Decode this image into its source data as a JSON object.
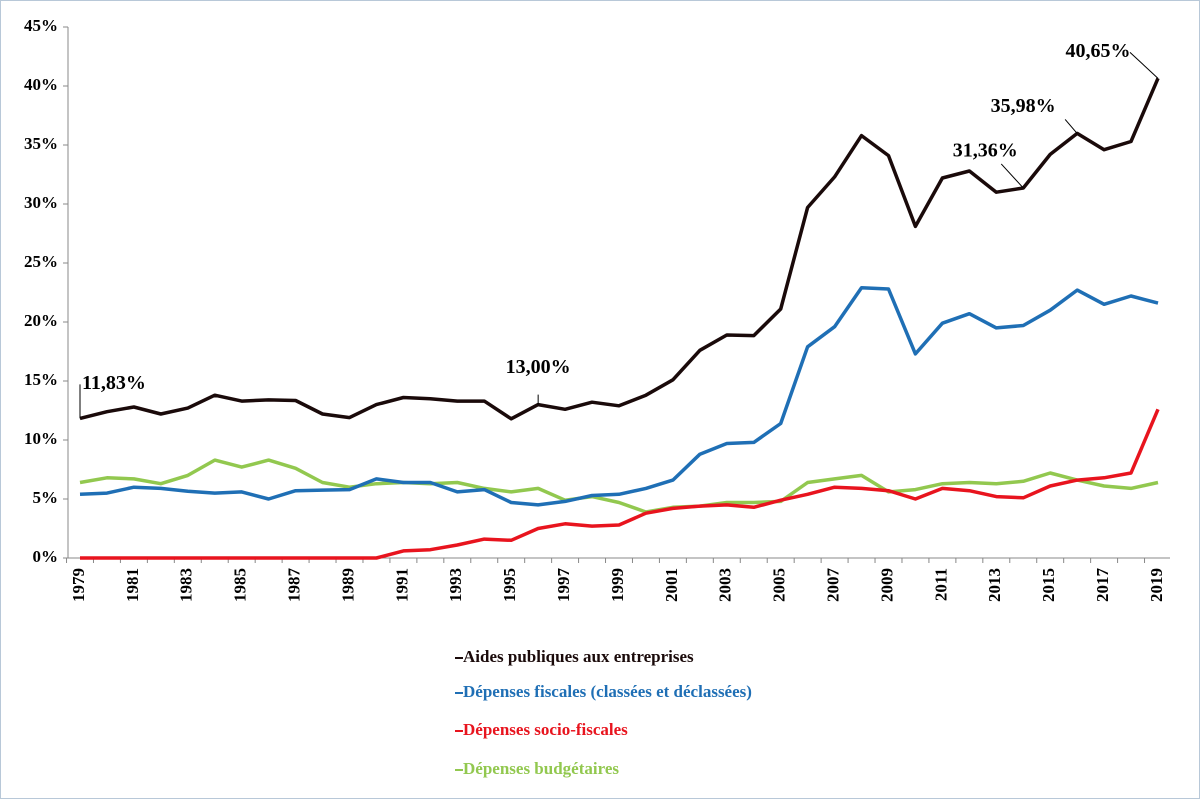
{
  "chart_data": {
    "type": "line",
    "categories": [
      "1979",
      null,
      "1981",
      null,
      "1983",
      null,
      "1985",
      null,
      "1987",
      null,
      "1989",
      null,
      "1991",
      null,
      "1993",
      null,
      "1995",
      null,
      "1997",
      null,
      "1999",
      null,
      "2001",
      null,
      "2003",
      null,
      "2005",
      null,
      "2007",
      null,
      "2009",
      null,
      "2011",
      null,
      "2013",
      null,
      "2015",
      null,
      "2017",
      null,
      "2019"
    ],
    "series": [
      {
        "name": "Aides publiques aux entreprises",
        "color": "#1a0a0a",
        "values": [
          11.83,
          12.4,
          12.8,
          12.2,
          12.7,
          13.8,
          13.3,
          13.4,
          13.35,
          12.2,
          11.9,
          13.0,
          13.6,
          13.5,
          13.3,
          13.3,
          11.8,
          13.0,
          12.6,
          13.2,
          12.9,
          13.8,
          15.1,
          17.6,
          18.9,
          18.85,
          21.1,
          29.7,
          32.3,
          35.8,
          34.1,
          28.1,
          32.2,
          32.8,
          31.0,
          31.36,
          34.2,
          35.98,
          34.6,
          35.3,
          40.65
        ],
        "value_labels": [
          "11,83%",
          null,
          null,
          null,
          null,
          null,
          null,
          null,
          null,
          null,
          null,
          null,
          null,
          null,
          null,
          null,
          null,
          "13,00%",
          null,
          null,
          null,
          null,
          null,
          null,
          null,
          null,
          null,
          null,
          null,
          null,
          null,
          null,
          null,
          null,
          null,
          "31,36%",
          null,
          "35,98%",
          null,
          null,
          "40,65%"
        ]
      },
      {
        "name": "Dépenses fiscales (classées et déclassées)",
        "color": "#1f6fb5",
        "values": [
          5.4,
          5.5,
          6.0,
          5.9,
          5.65,
          5.5,
          5.6,
          5.0,
          5.7,
          5.75,
          5.8,
          6.7,
          6.4,
          6.4,
          5.6,
          5.8,
          4.7,
          4.5,
          4.8,
          5.3,
          5.4,
          5.9,
          6.6,
          8.8,
          9.7,
          9.8,
          11.4,
          17.9,
          19.6,
          22.9,
          22.8,
          17.3,
          19.9,
          20.7,
          19.5,
          19.7,
          21.0,
          22.7,
          21.5,
          22.2,
          21.6
        ]
      },
      {
        "name": "Dépenses socio-fiscales",
        "color": "#e8141e",
        "values": [
          0,
          0,
          0,
          0,
          0,
          0,
          0,
          0,
          0,
          0,
          0,
          0,
          0.6,
          0.7,
          1.1,
          1.6,
          1.5,
          2.5,
          2.9,
          2.7,
          2.8,
          3.8,
          4.2,
          4.4,
          4.5,
          4.3,
          4.9,
          5.4,
          6.0,
          5.9,
          5.7,
          5.0,
          5.9,
          5.7,
          5.2,
          5.1,
          6.1,
          6.6,
          6.8,
          7.2,
          12.6
        ]
      },
      {
        "name": "Dépenses budgétaires",
        "color": "#92c84f",
        "values": [
          6.4,
          6.8,
          6.7,
          6.3,
          7.0,
          8.3,
          7.7,
          8.3,
          7.6,
          6.4,
          6.0,
          6.3,
          6.4,
          6.3,
          6.4,
          5.9,
          5.6,
          5.9,
          4.9,
          5.2,
          4.7,
          3.9,
          4.3,
          4.4,
          4.7,
          4.7,
          4.8,
          6.4,
          6.7,
          7.0,
          5.6,
          5.8,
          6.3,
          6.4,
          6.3,
          6.5,
          7.2,
          6.6,
          6.1,
          5.9,
          6.4
        ]
      }
    ],
    "ylim": [
      0,
      45
    ],
    "yticks": [
      {
        "value": 0,
        "label": "0%"
      },
      {
        "value": 5,
        "label": "5%"
      },
      {
        "value": 10,
        "label": "10%"
      },
      {
        "value": 15,
        "label": "15%"
      },
      {
        "value": 20,
        "label": "20%"
      },
      {
        "value": 25,
        "label": "25%"
      },
      {
        "value": 30,
        "label": "30%"
      },
      {
        "value": 35,
        "label": "35%"
      },
      {
        "value": 40,
        "label": "40%"
      },
      {
        "value": 45,
        "label": "45%"
      }
    ],
    "grid": false,
    "legend": "bottom"
  }
}
